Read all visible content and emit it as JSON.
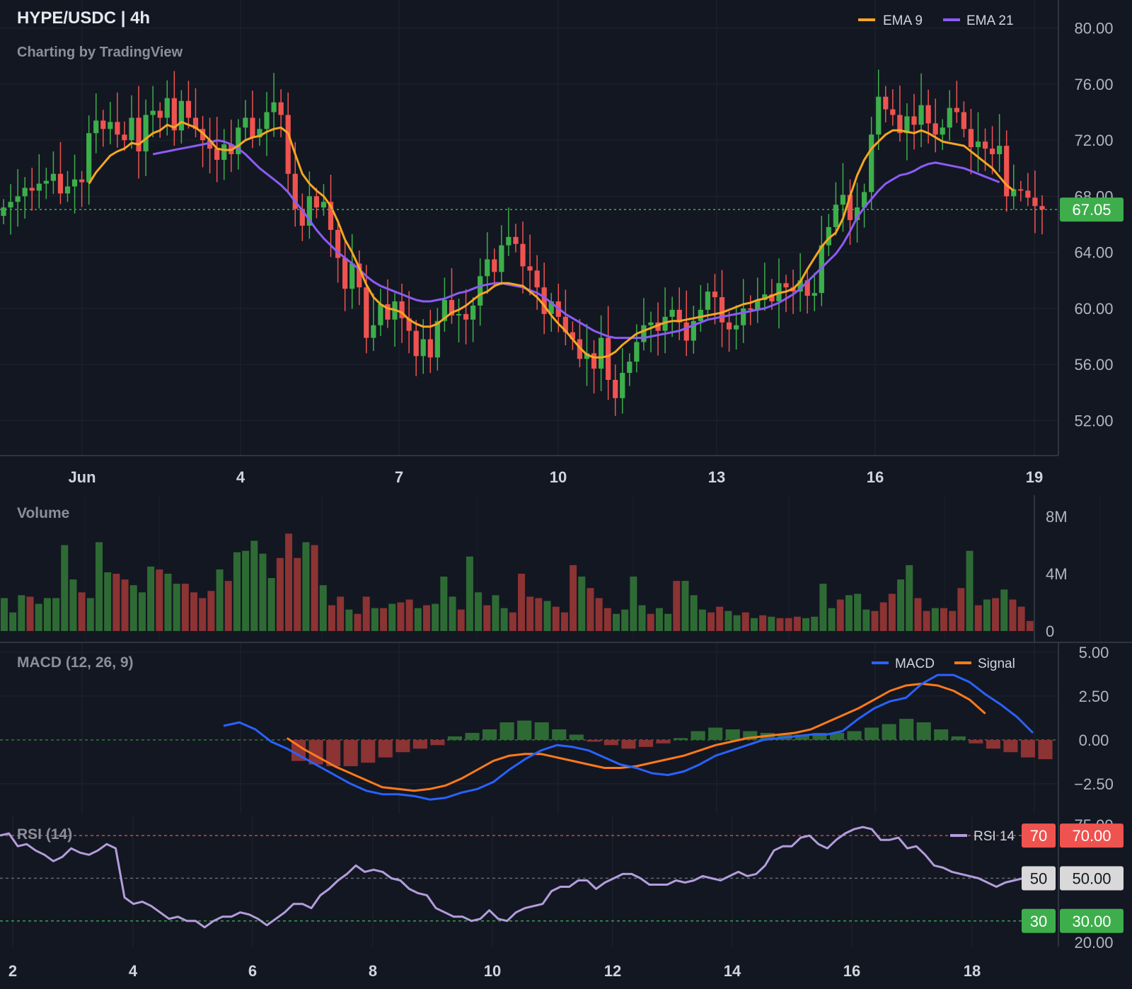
{
  "header": {
    "symbol_title": "HYPE/USDC | 4h",
    "attribution": "Charting by TradingView"
  },
  "colors": {
    "background": "#131722",
    "up": "#3dae4b",
    "down": "#ef5350",
    "volume_up": "#2e6b34",
    "volume_down": "#8c3333",
    "ema9": "#f5a623",
    "ema21": "#8b5cf6",
    "macd": "#2962ff",
    "signal": "#ff7a1a",
    "rsi": "#b39ddb",
    "price_tag": "#3dae4b",
    "rsi_overbought": "#ef5350",
    "rsi_mid": "#d9d9d9",
    "rsi_oversold": "#3dae4b"
  },
  "chart_data": [
    {
      "type": "candlestick",
      "panel": "price",
      "legend": [
        {
          "name": "EMA 9",
          "color": "#f5a623"
        },
        {
          "name": "EMA 21",
          "color": "#8b5cf6"
        }
      ],
      "y_ticks": [
        "80.00",
        "76.00",
        "72.00",
        "68.00",
        "64.00",
        "60.00",
        "56.00",
        "52.00"
      ],
      "ylim": [
        49.5,
        82
      ],
      "x_ticks": [
        "Jun",
        "4",
        "7",
        "10",
        "13",
        "16",
        "19"
      ],
      "last_price": "67.05",
      "close_series": [
        67.2,
        67.6,
        68.0,
        68.6,
        68.4,
        68.9,
        69.1,
        69.6,
        68.2,
        68.7,
        69.2,
        69.0,
        72.5,
        73.4,
        72.8,
        73.3,
        72.4,
        72.0,
        73.6,
        71.2,
        73.8,
        74.1,
        73.6,
        75.0,
        72.7,
        74.8,
        73.6,
        72.8,
        72.0,
        71.4,
        70.6,
        71.7,
        71.0,
        72.9,
        73.6,
        72.2,
        72.8,
        74.0,
        74.7,
        73.8,
        69.6,
        67.1,
        65.9,
        68.0,
        67.2,
        67.6,
        65.6,
        63.6,
        61.4,
        63.2,
        61.5,
        57.9,
        58.8,
        60.3,
        59.2,
        60.5,
        59.3,
        58.4,
        56.6,
        57.8,
        56.5,
        59.1,
        60.6,
        59.5,
        59.6,
        59.2,
        60.2,
        62.3,
        63.5,
        62.6,
        64.5,
        65.1,
        64.6,
        63.0,
        62.7,
        61.5,
        59.6,
        60.5,
        59.4,
        58.3,
        57.8,
        56.4,
        56.8,
        55.7,
        57.9,
        54.9,
        53.6,
        55.4,
        56.2,
        57.6,
        58.8,
        59.0,
        58.4,
        59.4,
        59.9,
        59.0,
        57.7,
        59.1,
        59.9,
        61.2,
        60.8,
        59.0,
        58.5,
        58.8,
        60.0,
        59.9,
        60.6,
        61.0,
        60.5,
        61.8,
        61.5,
        61.2,
        62.0,
        60.9,
        61.1,
        64.5,
        65.8,
        67.4,
        68.1,
        66.3,
        67.2,
        68.3,
        72.4,
        75.1,
        74.2,
        73.8,
        72.5,
        73.7,
        73.1,
        74.5,
        73.2,
        72.4,
        72.9,
        74.3,
        74.0,
        72.8,
        71.5,
        71.9,
        71.4,
        71.0,
        71.6,
        68.0,
        68.5,
        68.4,
        67.9,
        67.3,
        67.05
      ],
      "ema9": [
        null,
        null,
        null,
        null,
        null,
        null,
        null,
        null,
        null,
        null,
        null,
        null,
        68.9,
        69.7,
        70.3,
        70.9,
        71.2,
        71.4,
        71.8,
        71.7,
        72.1,
        72.5,
        72.7,
        73.1,
        72.9,
        73.3,
        73.1,
        72.9,
        72.5,
        72.0,
        71.4,
        71.3,
        71.3,
        71.6,
        72.0,
        72.2,
        72.3,
        72.6,
        72.8,
        72.9,
        72.5,
        71.0,
        69.6,
        68.9,
        68.4,
        68.0,
        67.3,
        66.2,
        64.9,
        64.0,
        62.9,
        61.7,
        60.8,
        60.3,
        60.0,
        59.9,
        59.7,
        59.2,
        58.9,
        58.7,
        58.7,
        58.9,
        59.3,
        59.7,
        59.9,
        60.2,
        60.6,
        61.0,
        61.2,
        61.6,
        61.8,
        61.8,
        61.7,
        61.6,
        61.2,
        60.8,
        60.2,
        59.5,
        58.9,
        58.4,
        57.8,
        57.2,
        56.7,
        56.5,
        56.5,
        56.6,
        56.9,
        57.4,
        57.8,
        58.2,
        58.4,
        58.6,
        58.8,
        59.0,
        59.1,
        59.1,
        59.2,
        59.3,
        59.4,
        59.5,
        59.6,
        59.7,
        59.9,
        60.1,
        60.3,
        60.4,
        60.6,
        60.7,
        60.9,
        61.1,
        61.2,
        61.4,
        61.9,
        62.8,
        63.6,
        64.4,
        65.0,
        65.4,
        66.4,
        68.0,
        69.5,
        70.6,
        71.4,
        71.9,
        72.4,
        72.7,
        72.7,
        72.6,
        72.5,
        72.7,
        72.5,
        72.2,
        71.9,
        71.8,
        71.7,
        71.6,
        71.2,
        70.8,
        70.4,
        70.0,
        69.4,
        68.8,
        68.4
      ],
      "ema21": [
        null,
        null,
        null,
        null,
        null,
        null,
        null,
        null,
        null,
        null,
        null,
        null,
        null,
        null,
        null,
        null,
        null,
        null,
        null,
        null,
        null,
        71.0,
        71.1,
        71.2,
        71.3,
        71.4,
        71.5,
        71.6,
        71.7,
        71.8,
        72.0,
        71.9,
        71.7,
        71.4,
        71.0,
        70.5,
        70.0,
        69.6,
        69.2,
        68.8,
        68.3,
        67.6,
        67.0,
        66.3,
        65.6,
        65.0,
        64.5,
        64.0,
        63.6,
        63.2,
        62.8,
        62.3,
        61.9,
        61.6,
        61.4,
        61.2,
        61.0,
        60.8,
        60.6,
        60.5,
        60.5,
        60.6,
        60.7,
        60.9,
        61.1,
        61.2,
        61.4,
        61.6,
        61.7,
        61.8,
        61.8,
        61.7,
        61.6,
        61.5,
        61.3,
        61.1,
        60.8,
        60.4,
        60.0,
        59.6,
        59.3,
        59.0,
        58.7,
        58.4,
        58.2,
        58.0,
        57.9,
        57.9,
        57.9,
        57.9,
        57.9,
        58.0,
        58.1,
        58.2,
        58.3,
        58.4,
        58.6,
        58.8,
        59.0,
        59.2,
        59.3,
        59.4,
        59.5,
        59.6,
        59.7,
        59.8,
        59.9,
        60.0,
        60.2,
        60.4,
        60.7,
        61.0,
        61.4,
        61.9,
        62.4,
        62.9,
        63.4,
        63.9,
        64.6,
        65.5,
        66.5,
        67.2,
        67.8,
        68.4,
        68.9,
        69.2,
        69.5,
        69.6,
        69.8,
        70.1,
        70.3,
        70.4,
        70.3,
        70.2,
        70.1,
        70.0,
        69.8,
        69.6,
        69.4,
        69.2,
        69.0
      ]
    },
    {
      "type": "bar",
      "panel": "volume",
      "title": "Volume",
      "y_ticks": [
        "8M",
        "4M",
        "0"
      ],
      "ylim": [
        0,
        8
      ],
      "values": [
        2.3,
        1.3,
        2.5,
        2.4,
        1.9,
        2.3,
        2.3,
        6.0,
        3.6,
        2.7,
        2.3,
        6.2,
        4.1,
        4.0,
        3.6,
        3.2,
        2.7,
        4.5,
        4.3,
        4.0,
        3.3,
        3.3,
        2.7,
        2.3,
        2.8,
        4.3,
        3.5,
        5.5,
        5.6,
        6.3,
        5.4,
        3.7,
        5.1,
        6.8,
        5.1,
        6.2,
        6.0,
        3.2,
        1.8,
        2.4,
        1.5,
        1.2,
        2.4,
        1.6,
        1.6,
        1.9,
        2.0,
        2.2,
        1.6,
        1.8,
        1.9,
        3.8,
        2.4,
        1.5,
        5.2,
        2.7,
        1.8,
        2.5,
        1.6,
        1.3,
        4.0,
        2.4,
        2.3,
        2.1,
        1.7,
        1.3,
        4.6,
        3.8,
        3.0,
        2.3,
        1.6,
        1.2,
        1.5,
        3.8,
        1.8,
        1.2,
        1.6,
        1.2,
        3.5,
        3.5,
        2.5,
        1.5,
        1.3,
        1.7,
        1.4,
        1.1,
        1.3,
        0.9,
        1.1,
        1.0,
        0.9,
        0.9,
        1.0,
        0.9,
        1.0,
        3.3,
        1.6,
        2.2,
        2.5,
        2.6,
        1.5,
        1.4,
        2.0,
        2.6,
        3.6,
        4.6,
        2.3,
        1.4,
        1.6,
        1.6,
        1.4,
        3.0,
        5.6,
        1.8,
        2.2,
        2.3,
        2.9,
        2.2,
        1.7,
        0.7
      ]
    },
    {
      "type": "line",
      "panel": "macd",
      "title": "MACD (12, 26, 9)",
      "legend": [
        {
          "name": "MACD",
          "color": "#2962ff"
        },
        {
          "name": "Signal",
          "color": "#ff7a1a"
        }
      ],
      "y_ticks": [
        "5.00",
        "2.50",
        "0.00",
        "−2.50"
      ],
      "ylim": [
        -4.2,
        5.4
      ],
      "macd": [
        0.8,
        1.0,
        0.6,
        -0.1,
        -0.5,
        -1.0,
        -1.5,
        -2.0,
        -2.5,
        -2.9,
        -3.1,
        -3.1,
        -3.2,
        -3.4,
        -3.3,
        -3.0,
        -2.8,
        -2.4,
        -1.7,
        -1.1,
        -0.6,
        -0.3,
        -0.4,
        -0.6,
        -1.0,
        -1.4,
        -1.6,
        -1.9,
        -2.0,
        -1.8,
        -1.4,
        -0.9,
        -0.6,
        -0.3,
        0.0,
        0.1,
        0.2,
        0.3,
        0.3,
        0.5,
        1.2,
        1.8,
        2.2,
        2.4,
        3.2,
        3.7,
        3.7,
        3.3,
        2.6,
        2.0,
        1.3,
        0.4
      ],
      "signal": [
        null,
        null,
        null,
        null,
        0.1,
        -0.5,
        -1.0,
        -1.5,
        -1.9,
        -2.3,
        -2.7,
        -2.8,
        -2.9,
        -2.8,
        -2.6,
        -2.2,
        -1.7,
        -1.2,
        -0.9,
        -0.8,
        -0.8,
        -1.0,
        -1.2,
        -1.4,
        -1.6,
        -1.6,
        -1.5,
        -1.3,
        -1.1,
        -0.9,
        -0.6,
        -0.3,
        -0.1,
        0.1,
        0.2,
        0.3,
        0.4,
        0.6,
        1.0,
        1.4,
        1.8,
        2.3,
        2.8,
        3.1,
        3.2,
        3.1,
        2.8,
        2.3,
        1.5
      ],
      "histogram": [
        -1.2,
        -1.4,
        -1.5,
        -1.5,
        -1.3,
        -1.0,
        -0.7,
        -0.5,
        -0.3,
        0.2,
        0.4,
        0.6,
        1.0,
        1.1,
        1.0,
        0.6,
        0.3,
        -0.1,
        -0.3,
        -0.5,
        -0.4,
        -0.2,
        0.1,
        0.5,
        0.7,
        0.6,
        0.5,
        0.4,
        0.3,
        0.3,
        0.4,
        0.4,
        0.5,
        0.7,
        0.9,
        1.2,
        1.0,
        0.6,
        0.2,
        -0.2,
        -0.5,
        -0.7,
        -1.0,
        -1.1
      ]
    },
    {
      "type": "line",
      "panel": "rsi",
      "title": "RSI (14)",
      "legend": [
        {
          "name": "RSI 14",
          "color": "#b39ddb"
        }
      ],
      "y_ticks": [
        "75.00",
        "20.00"
      ],
      "ylim": [
        18,
        77
      ],
      "levels": [
        {
          "label": "70",
          "value_label": "70.00",
          "value": 70
        },
        {
          "label": "50",
          "value_label": "50.00",
          "value": 50
        },
        {
          "label": "30",
          "value_label": "30.00",
          "value": 30
        }
      ],
      "x_ticks": [
        "2",
        "4",
        "6",
        "8",
        "10",
        "12",
        "14",
        "16",
        "18"
      ],
      "values": [
        70,
        71,
        65,
        66,
        63,
        61,
        58,
        60,
        64,
        62,
        61,
        63,
        66,
        64,
        41,
        38,
        39,
        37,
        34,
        31,
        32,
        30,
        30,
        27,
        30,
        32,
        32,
        34,
        33,
        31,
        28,
        31,
        34,
        38,
        38,
        36,
        42,
        45,
        49,
        52,
        56,
        53,
        54,
        53,
        50,
        49,
        45,
        43,
        42,
        36,
        34,
        32,
        32,
        30,
        31,
        35,
        31,
        30,
        34,
        36,
        37,
        38,
        44,
        46,
        46,
        49,
        49,
        45,
        48,
        50,
        52,
        52,
        50,
        47,
        47,
        47,
        49,
        48,
        49,
        51,
        50,
        49,
        51,
        53,
        51,
        52,
        56,
        63,
        65,
        65,
        69,
        70,
        66,
        64,
        68,
        71,
        73,
        74,
        73,
        68,
        68,
        69,
        64,
        65,
        61,
        56,
        55,
        53,
        52,
        51,
        50,
        48,
        46,
        48,
        49,
        50
      ]
    }
  ]
}
